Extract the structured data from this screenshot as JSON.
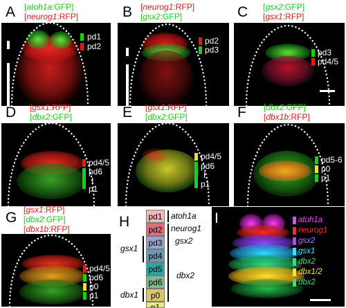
{
  "panels": {
    "A": {
      "letter": "A",
      "label1_gene": "atoh1a",
      "label1_suffix": ":GFP",
      "label2_gene": "neurog1",
      "label2_suffix": ":RFP",
      "domains": [
        "pd1",
        "pd2"
      ]
    },
    "B": {
      "letter": "B",
      "label1_gene": "neurog1",
      "label1_suffix": ":RFP",
      "label2_gene": "gsx2",
      "label2_suffix": ":GFP",
      "domains": [
        "pd2",
        "pd3"
      ]
    },
    "C": {
      "letter": "C",
      "label1_gene": "gsx2",
      "label1_suffix": ":GFP",
      "label2_gene": "gsx1",
      "label2_suffix": ":RFP",
      "domains": [
        "pd3",
        "pd4/5"
      ]
    },
    "D": {
      "letter": "D",
      "label1_gene": "gsx1",
      "label1_suffix": ":RFP",
      "label2_gene": "dbx2",
      "label2_suffix": ":GFP",
      "domains": [
        "pd4/5",
        "pd6",
        "I",
        "p1"
      ]
    },
    "E": {
      "letter": "E",
      "label1_gene": "gsx1",
      "label1_suffix": ":RFP",
      "label2_gene": "dbx2",
      "label2_suffix": ":GFP",
      "domains": [
        "pd4/5",
        "pd6",
        "I",
        "p1"
      ]
    },
    "F": {
      "letter": "F",
      "label1_gene": "dbx2",
      "label1_suffix": ":GFP",
      "label2_gene": "dbx1b",
      "label2_suffix": ":RFP",
      "domains": [
        "pd5-6",
        "p0",
        "p1"
      ]
    },
    "G": {
      "letter": "G",
      "label1_gene": "gsx1",
      "label1_suffix": ":RFP",
      "label2_gene": "dbx2",
      "label2_suffix": ":GFP",
      "label3_gene": "dbx1b",
      "label3_suffix": ":RFP",
      "domains": [
        "pd4/5",
        "pd6",
        "p0",
        "p1"
      ]
    },
    "H": {
      "letter": "H",
      "domains": [
        "pd1",
        "pd2",
        "pd3",
        "pd4",
        "pd5",
        "pd6",
        "p0",
        "p1"
      ],
      "genes": {
        "atoh1a": "atoh1a",
        "neurog1": "neurog1",
        "gsx2": "gsx2",
        "gsx1": "gsx1",
        "dbx2": "dbx2",
        "dbx1": "dbx1"
      }
    },
    "I": {
      "letter": "I",
      "genes": [
        "atoh1a",
        "neurog1",
        "gsx2",
        "gsx1",
        "dbx2",
        "dbx1/2",
        "dbx2"
      ]
    }
  },
  "colors": {
    "gfp_label": "#14d214",
    "rfp_label": "#e81818",
    "pd1": "#f2b9b9",
    "pd2": "#d9707a",
    "pd3": "#9aa3c9",
    "pd4": "#6b98b4",
    "pd5": "#2aa6a8",
    "pd6": "#7fb890",
    "p0": "#d8c36e",
    "p1": "#eaea8a",
    "I_atoh1a": "#ff3df5",
    "I_neurog1": "#ff2a2a",
    "I_gsx2": "#a34dff",
    "I_gsx1": "#33e6ff",
    "I_dbx2": "#35e07a",
    "I_dbx12": "#ffe22a"
  }
}
